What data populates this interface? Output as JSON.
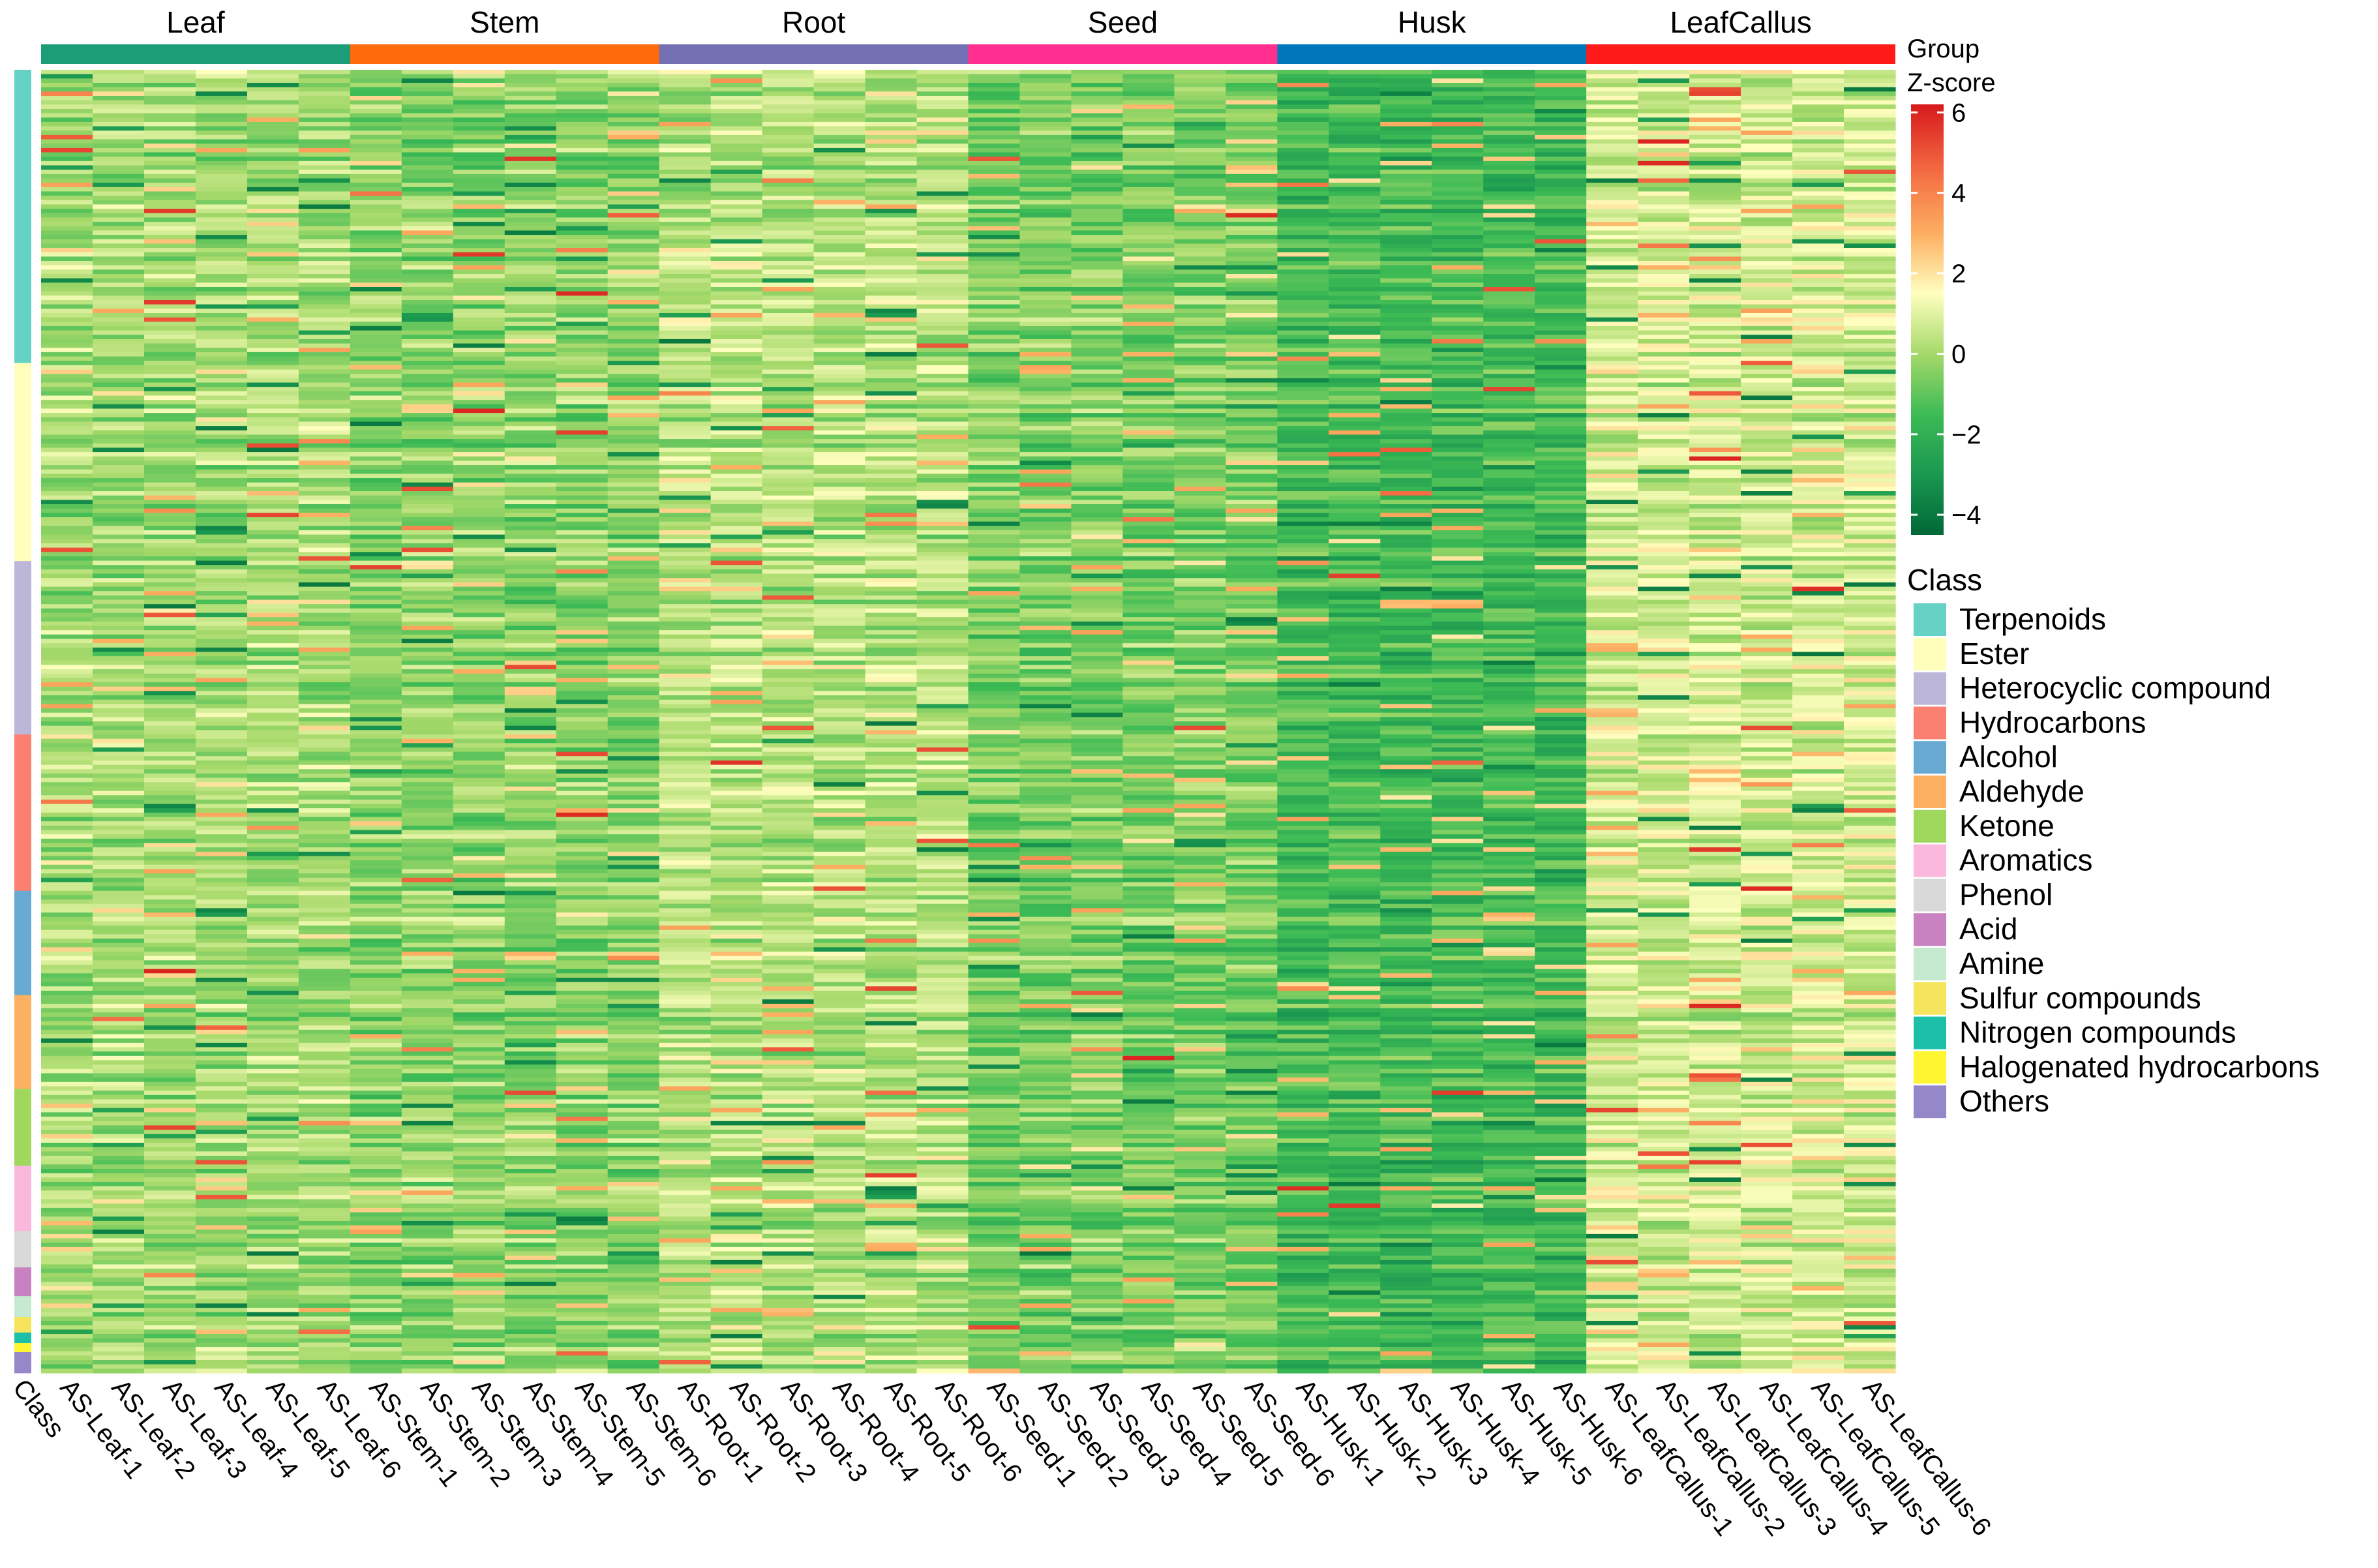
{
  "chart_data": {
    "type": "heatmap",
    "group_header": "Group",
    "groups": [
      {
        "name": "Leaf",
        "color": "#1b9e77",
        "samples": [
          "AS-Leaf-1",
          "AS-Leaf-2",
          "AS-Leaf-3",
          "AS-Leaf-4",
          "AS-Leaf-5",
          "AS-Leaf-6"
        ],
        "bias": 0.0
      },
      {
        "name": "Stem",
        "color": "#ff6a0d",
        "samples": [
          "AS-Stem-1",
          "AS-Stem-2",
          "AS-Stem-3",
          "AS-Stem-4",
          "AS-Stem-5",
          "AS-Stem-6"
        ],
        "bias": -0.35
      },
      {
        "name": "Root",
        "color": "#7570b3",
        "samples": [
          "AS-Root-1",
          "AS-Root-2",
          "AS-Root-3",
          "AS-Root-4",
          "AS-Root-5",
          "AS-Root-6"
        ],
        "bias": 0.3
      },
      {
        "name": "Seed",
        "color": "#ff2e8f",
        "samples": [
          "AS-Seed-1",
          "AS-Seed-2",
          "AS-Seed-3",
          "AS-Seed-4",
          "AS-Seed-5",
          "AS-Seed-6"
        ],
        "bias": -0.6
      },
      {
        "name": "Husk",
        "color": "#0077bb",
        "samples": [
          "AS-Husk-1",
          "AS-Husk-2",
          "AS-Husk-3",
          "AS-Husk-4",
          "AS-Husk-5",
          "AS-Husk-6"
        ],
        "bias": -1.5
      },
      {
        "name": "LeafCallus",
        "color": "#ff1a1a",
        "samples": [
          "AS-LeafCallus-1",
          "AS-LeafCallus-2",
          "AS-LeafCallus-3",
          "AS-LeafCallus-4",
          "AS-LeafCallus-5",
          "AS-LeafCallus-6"
        ],
        "bias": 0.8
      }
    ],
    "class_column_label": "Class",
    "colorbar": {
      "title": "Z-score",
      "ticks": [
        6,
        4,
        2,
        0,
        -2,
        -4
      ],
      "range": [
        -4.5,
        6.2
      ],
      "stops": [
        {
          "value": -4.5,
          "color": "#006837"
        },
        {
          "value": -3.0,
          "color": "#1a9850"
        },
        {
          "value": -1.5,
          "color": "#3dbb55"
        },
        {
          "value": 0.0,
          "color": "#a6d96a"
        },
        {
          "value": 1.5,
          "color": "#ffffbf"
        },
        {
          "value": 3.0,
          "color": "#fdae61"
        },
        {
          "value": 4.5,
          "color": "#f46d43"
        },
        {
          "value": 6.2,
          "color": "#d7191c"
        }
      ]
    },
    "class_legend_title": "Class",
    "classes": [
      {
        "name": "Terpenoids",
        "color": "#66d1c5",
        "fraction": 0.225
      },
      {
        "name": "Ester",
        "color": "#ffffbb",
        "fraction": 0.152
      },
      {
        "name": "Heterocyclic compound",
        "color": "#bcb6d9",
        "fraction": 0.133
      },
      {
        "name": "Hydrocarbons",
        "color": "#fb8072",
        "fraction": 0.12
      },
      {
        "name": "Alcohol",
        "color": "#69aad3",
        "fraction": 0.08
      },
      {
        "name": "Aldehyde",
        "color": "#fdb062",
        "fraction": 0.072
      },
      {
        "name": "Ketone",
        "color": "#9fd85d",
        "fraction": 0.059
      },
      {
        "name": "Aromatics",
        "color": "#fbb8dd",
        "fraction": 0.05
      },
      {
        "name": "Phenol",
        "color": "#d9d9d9",
        "fraction": 0.028
      },
      {
        "name": "Acid",
        "color": "#c882c1",
        "fraction": 0.022
      },
      {
        "name": "Amine",
        "color": "#c5ead0",
        "fraction": 0.016
      },
      {
        "name": "Sulfur compounds",
        "color": "#f6e55c",
        "fraction": 0.012
      },
      {
        "name": "Nitrogen compounds",
        "color": "#1cc0a8",
        "fraction": 0.008
      },
      {
        "name": "Halogenated hydrocarbons",
        "color": "#fff531",
        "fraction": 0.007
      },
      {
        "name": "Others",
        "color": "#9588c8",
        "fraction": 0.016
      }
    ]
  }
}
